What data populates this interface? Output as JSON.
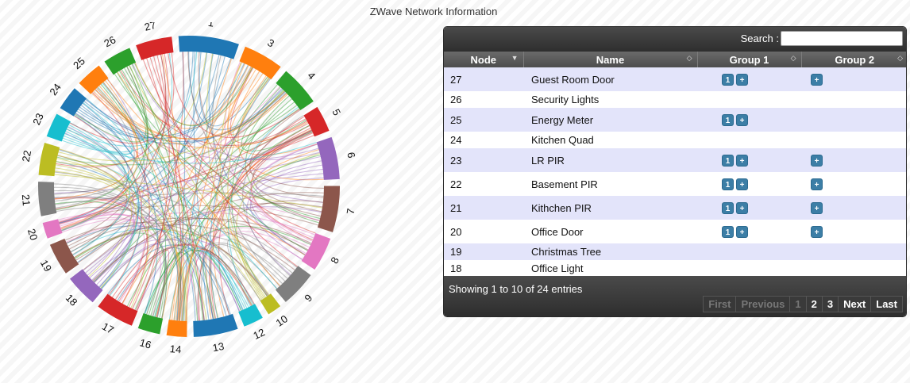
{
  "page": {
    "title": "ZWave Network Information"
  },
  "chord": {
    "labels": [
      "1",
      "3",
      "4",
      "5",
      "6",
      "7",
      "8",
      "9",
      "10",
      "12",
      "13",
      "14",
      "16",
      "17",
      "18",
      "19",
      "20",
      "21",
      "22",
      "23",
      "24",
      "25",
      "26",
      "27"
    ],
    "colors": [
      "#1f77b4",
      "#ff7f0e",
      "#2ca02c",
      "#d62728",
      "#9467bd",
      "#8c564b",
      "#e377c2",
      "#7f7f7f",
      "#bcbd22",
      "#17becf",
      "#1f77b4",
      "#ff7f0e",
      "#2ca02c",
      "#d62728",
      "#9467bd",
      "#8c564b",
      "#e377c2",
      "#7f7f7f",
      "#bcbd22",
      "#17becf",
      "#1f77b4",
      "#ff7f0e",
      "#2ca02c",
      "#d62728"
    ]
  },
  "table": {
    "search_label": "Search :",
    "search_value": "",
    "columns": [
      "Node",
      "Name",
      "Group 1",
      "Group 2"
    ],
    "rows": [
      {
        "node": "27",
        "name": "Guest Room Door",
        "g1": [
          "1",
          "+"
        ],
        "g2": [
          "+"
        ]
      },
      {
        "node": "26",
        "name": "Security Lights",
        "g1": [],
        "g2": []
      },
      {
        "node": "25",
        "name": "Energy Meter",
        "g1": [
          "1",
          "+"
        ],
        "g2": []
      },
      {
        "node": "24",
        "name": "Kitchen Quad",
        "g1": [],
        "g2": []
      },
      {
        "node": "23",
        "name": "LR PIR",
        "g1": [
          "1",
          "+"
        ],
        "g2": [
          "+"
        ]
      },
      {
        "node": "22",
        "name": "Basement PIR",
        "g1": [
          "1",
          "+"
        ],
        "g2": [
          "+"
        ]
      },
      {
        "node": "21",
        "name": "Kithchen PIR",
        "g1": [
          "1",
          "+"
        ],
        "g2": [
          "+"
        ]
      },
      {
        "node": "20",
        "name": "Office Door",
        "g1": [
          "1",
          "+"
        ],
        "g2": [
          "+"
        ]
      },
      {
        "node": "19",
        "name": "Christmas Tree",
        "g1": [],
        "g2": []
      },
      {
        "node": "18",
        "name": "Office Light",
        "g1": [],
        "g2": []
      }
    ],
    "info": "Showing 1 to 10 of 24 entries",
    "pager": {
      "first": "First",
      "previous": "Previous",
      "pages": [
        "1",
        "2",
        "3"
      ],
      "next": "Next",
      "last": "Last"
    }
  }
}
